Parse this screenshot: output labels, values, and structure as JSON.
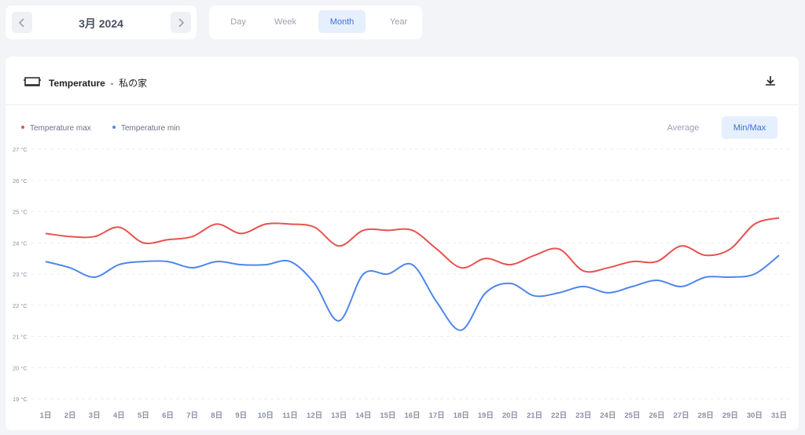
{
  "nav": {
    "period": "3月 2024"
  },
  "tabs": [
    "Day",
    "Week",
    "Month",
    "Year"
  ],
  "active_tab": 2,
  "card": {
    "title": "Temperature",
    "separator": "-",
    "place": "私の家"
  },
  "modes": [
    "Average",
    "Min/Max"
  ],
  "active_mode": 1,
  "chart_data": {
    "type": "line",
    "categories": [
      "1日",
      "2日",
      "3日",
      "4日",
      "5日",
      "6日",
      "7日",
      "8日",
      "9日",
      "10日",
      "11日",
      "12日",
      "13日",
      "14日",
      "15日",
      "16日",
      "17日",
      "18日",
      "19日",
      "20日",
      "21日",
      "22日",
      "23日",
      "24日",
      "25日",
      "26日",
      "27日",
      "28日",
      "29日",
      "30日",
      "31日"
    ],
    "series": [
      {
        "name": "Temperature max",
        "color": "#e8524f",
        "values": [
          24.3,
          24.2,
          24.2,
          24.5,
          24.0,
          24.1,
          24.2,
          24.6,
          24.3,
          24.6,
          24.6,
          24.5,
          23.9,
          24.4,
          24.4,
          24.4,
          23.8,
          23.2,
          23.5,
          23.3,
          23.6,
          23.8,
          23.1,
          23.2,
          23.4,
          23.4,
          23.9,
          23.6,
          23.8,
          24.6,
          24.8
        ]
      },
      {
        "name": "Temperature min",
        "color": "#4f86ec",
        "values": [
          23.4,
          23.2,
          22.9,
          23.3,
          23.4,
          23.4,
          23.2,
          23.4,
          23.3,
          23.3,
          23.4,
          22.7,
          21.5,
          23.0,
          23.0,
          23.3,
          22.1,
          21.2,
          22.4,
          22.7,
          22.3,
          22.4,
          22.6,
          22.4,
          22.6,
          22.8,
          22.6,
          22.9,
          22.9,
          23.0,
          23.6
        ]
      }
    ],
    "ylim": [
      19,
      27
    ],
    "yticks": [
      {
        "value": 19,
        "label": "19 °C"
      },
      {
        "value": 20,
        "label": "20 °C"
      },
      {
        "value": 21,
        "label": "21 °C"
      },
      {
        "value": 22,
        "label": "22 °C"
      },
      {
        "value": 23,
        "label": "23 °C"
      },
      {
        "value": 24,
        "label": "24 °C"
      },
      {
        "value": 25,
        "label": "25 °C"
      },
      {
        "value": 26,
        "label": "26 °C"
      },
      {
        "value": 27,
        "label": "27 °C"
      }
    ],
    "grid": true,
    "legend": "top-left"
  }
}
